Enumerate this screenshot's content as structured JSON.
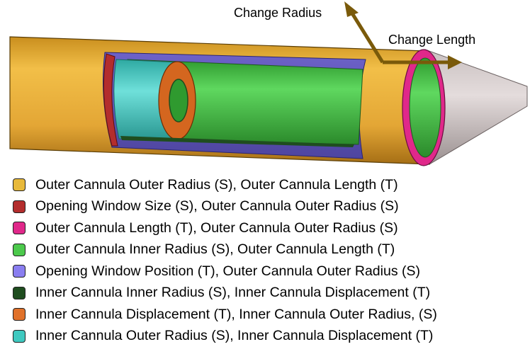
{
  "annotations": {
    "change_radius": "Change Radius",
    "change_length": "Change Length"
  },
  "legend": [
    {
      "text": "Outer Cannula Outer Radius (S), Outer Cannula Length (T)",
      "color": "#e8b93a"
    },
    {
      "text": "Opening Window Size (S), Outer Cannula Outer Radius (S)",
      "color": "#b32d2d"
    },
    {
      "text": "Outer Cannula Length (T), Outer Cannula Outer Radius (S)",
      "color": "#e0288a"
    },
    {
      "text": "Outer Cannula Inner Radius (S), Outer Cannula Length (T)",
      "color": "#4cc94c"
    },
    {
      "text": "Opening Window Position (T), Outer Cannula Outer Radius (S)",
      "color": "#8a7ef0"
    },
    {
      "text": "Inner Cannula Inner Radius (S), Inner Cannula Displacement (T)",
      "color": "#1f4d1f"
    },
    {
      "text": "Inner Cannula Displacement (T), Inner Cannula Outer Radius, (S)",
      "color": "#e0712a"
    },
    {
      "text": "Inner Cannula Outer Radius (S), Inner Cannula Displacement (T)",
      "color": "#3fc9c0"
    }
  ]
}
